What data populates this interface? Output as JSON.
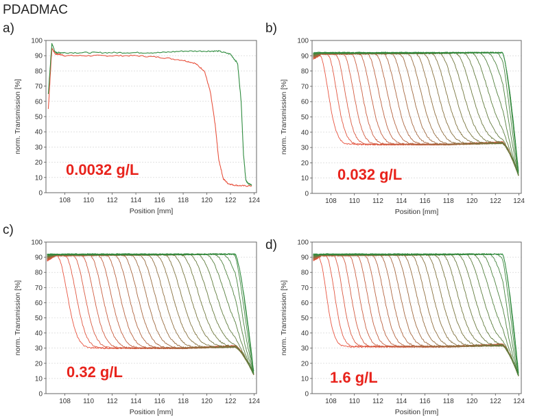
{
  "figure_title": "PDADMAC",
  "chart_data": [
    {
      "type": "line",
      "panel_label": "a)",
      "concentration_label": "0.0032 g/L",
      "xlabel": "Position [mm]",
      "ylabel": "norm. Transmission [%]",
      "xlim": [
        106.4,
        124.2
      ],
      "ylim": [
        0,
        100
      ],
      "xticks": [
        "108",
        "110",
        "112",
        "114",
        "116",
        "118",
        "120",
        "122",
        "124"
      ],
      "yticks": [
        "0",
        "10",
        "20",
        "30",
        "40",
        "50",
        "60",
        "70",
        "80",
        "90",
        "100"
      ],
      "grid": true,
      "series": [
        {
          "color": "#e8533f",
          "x": [
            106.6,
            106.9,
            107.2,
            107.5,
            108,
            110,
            112,
            114,
            116,
            118,
            119,
            119.8,
            120.3,
            120.7,
            121.0,
            121.4,
            121.8,
            122.3,
            123,
            123.8
          ],
          "y": [
            55,
            95,
            91,
            91,
            90,
            90,
            90,
            90,
            89,
            87,
            85,
            80,
            66,
            45,
            22,
            9,
            6,
            5,
            4.5,
            4.5
          ]
        },
        {
          "color": "#2e8b3e",
          "x": [
            106.6,
            106.9,
            107.2,
            107.5,
            108,
            110,
            112,
            114,
            116,
            118,
            120,
            121,
            122,
            122.6,
            122.9,
            123.1,
            123.3,
            123.5,
            123.8
          ],
          "y": [
            65,
            98,
            92,
            92,
            92,
            92,
            92,
            92,
            92,
            93,
            93,
            93,
            91,
            85,
            60,
            25,
            8,
            6,
            5
          ]
        }
      ]
    },
    {
      "type": "line",
      "panel_label": "b)",
      "concentration_label": "0.032 g/L",
      "xlabel": "Position [mm]",
      "ylabel": "norm. Transmission [%]",
      "xlim": [
        106.4,
        124.2
      ],
      "ylim": [
        0,
        100
      ],
      "xticks": [
        "108",
        "110",
        "112",
        "114",
        "116",
        "118",
        "120",
        "122",
        "124"
      ],
      "yticks": [
        "0",
        "10",
        "20",
        "30",
        "40",
        "50",
        "60",
        "70",
        "80",
        "90",
        "100"
      ],
      "grid": true,
      "family": {
        "count": 26,
        "bottom_level": 32,
        "plateau": 91,
        "plateau_end": 92,
        "first_front": 107.0,
        "front_spacing": 0.68,
        "front_width_start": 1.2,
        "front_width_end": 2.6,
        "drop_start": 122.6,
        "end_value": 11,
        "color_start": "#e8533f",
        "color_end": "#2e8b3e"
      }
    },
    {
      "type": "line",
      "panel_label": "c)",
      "concentration_label": "0.32 g/L",
      "xlabel": "Position [mm]",
      "ylabel": "norm. Transmission [%]",
      "xlim": [
        106.4,
        124.2
      ],
      "ylim": [
        0,
        100
      ],
      "xticks": [
        "108",
        "110",
        "112",
        "114",
        "116",
        "118",
        "120",
        "122",
        "124"
      ],
      "yticks": [
        "0",
        "10",
        "20",
        "30",
        "40",
        "50",
        "60",
        "70",
        "80",
        "90",
        "100"
      ],
      "grid": true,
      "family": {
        "count": 24,
        "bottom_level": 30,
        "plateau": 91,
        "plateau_end": 92,
        "first_front": 107.3,
        "front_spacing": 0.7,
        "front_width_start": 1.4,
        "front_width_end": 2.8,
        "drop_start": 122.4,
        "end_value": 12,
        "color_start": "#e8533f",
        "color_end": "#2e8b3e"
      }
    },
    {
      "type": "line",
      "panel_label": "d)",
      "concentration_label": "1.6 g/L",
      "xlabel": "Position [mm]",
      "ylabel": "norm. Transmission [%]",
      "xlim": [
        106.4,
        124.2
      ],
      "ylim": [
        0,
        100
      ],
      "xticks": [
        "108",
        "110",
        "112",
        "114",
        "116",
        "118",
        "120",
        "122",
        "124"
      ],
      "yticks": [
        "0",
        "10",
        "20",
        "30",
        "40",
        "50",
        "60",
        "70",
        "80",
        "90",
        "100"
      ],
      "grid": true,
      "family": {
        "count": 26,
        "bottom_level": 31,
        "plateau": 91,
        "plateau_end": 92,
        "first_front": 106.9,
        "front_spacing": 0.66,
        "front_width_start": 1.1,
        "front_width_end": 2.5,
        "drop_start": 122.6,
        "end_value": 11,
        "color_start": "#e8533f",
        "color_end": "#2e8b3e"
      }
    }
  ]
}
